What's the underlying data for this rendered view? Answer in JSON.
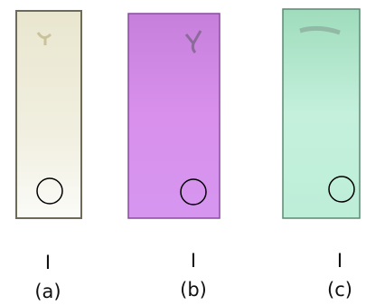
{
  "panels": [
    {
      "marker": "I",
      "label": "(a)"
    },
    {
      "marker": "I",
      "label": "(b)"
    },
    {
      "marker": "I",
      "label": "(c)"
    }
  ]
}
